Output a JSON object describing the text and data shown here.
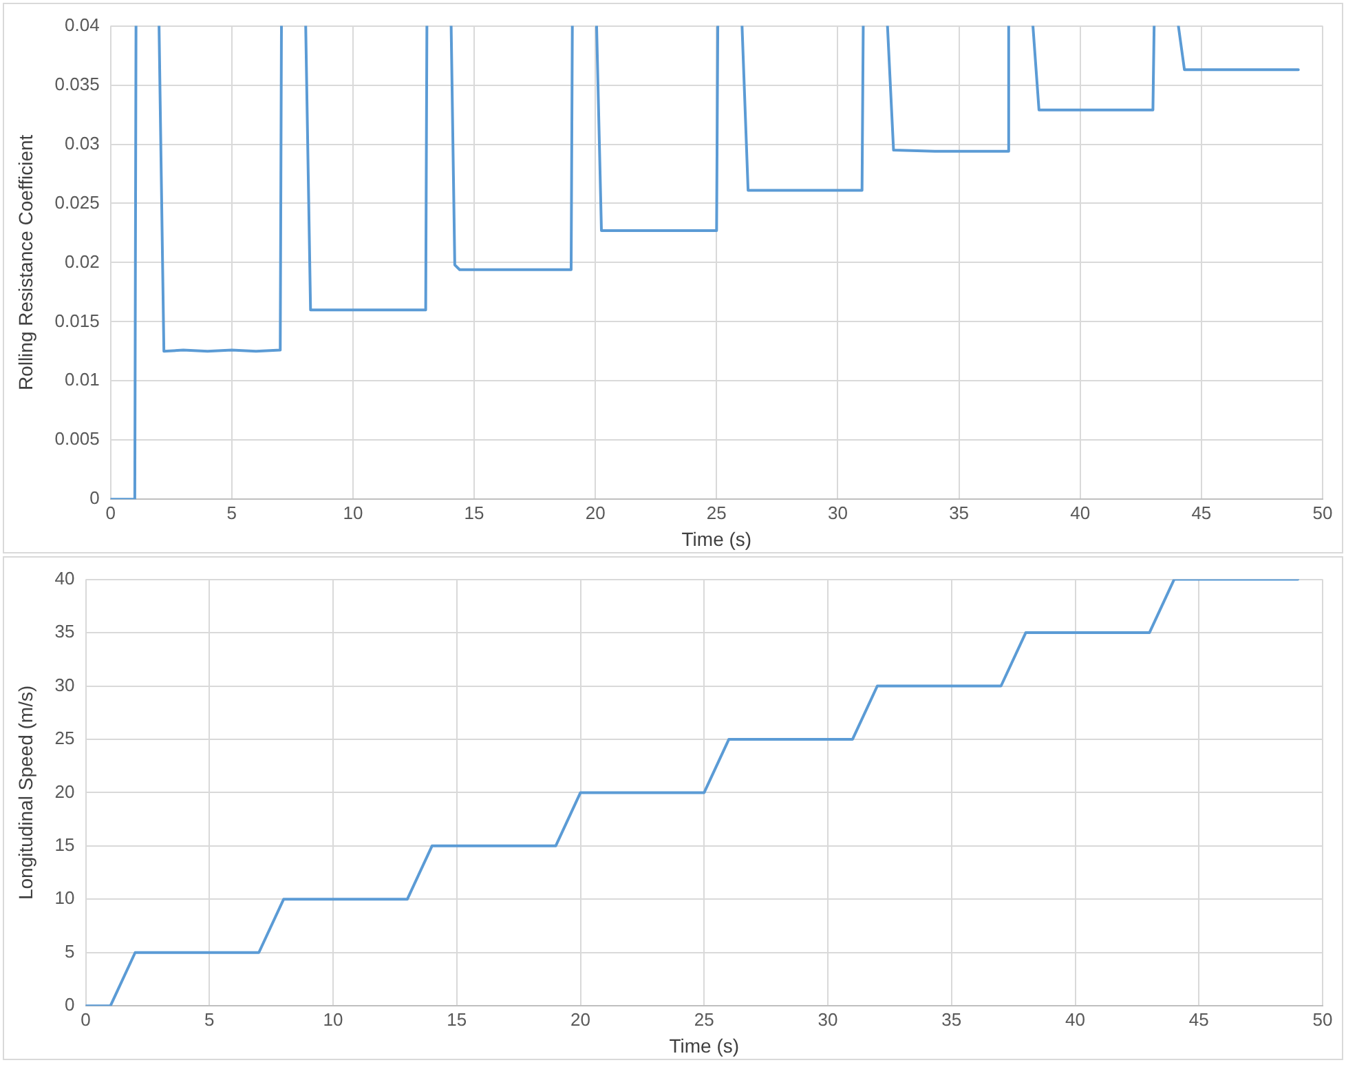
{
  "chart_data": [
    {
      "type": "line",
      "xlabel": "Time (s)",
      "ylabel": "Rolling Resistance Coefficient",
      "xlim": [
        0,
        50
      ],
      "xticks": [
        0,
        5,
        10,
        15,
        20,
        25,
        30,
        35,
        40,
        45,
        50
      ],
      "ylim": [
        0,
        0.04
      ],
      "yticks": [
        0,
        0.005,
        0.01,
        0.015,
        0.02,
        0.025,
        0.03,
        0.035,
        0.04
      ],
      "grid": true,
      "legend": false,
      "marker": "none",
      "line_style": "solid",
      "series": [
        {
          "color": "#5b9bd5",
          "x": [
            0,
            1,
            1.05,
            1.5,
            2.0,
            2.2,
            3,
            4,
            5,
            6,
            7,
            7.05,
            7.5,
            8.05,
            8.25,
            10,
            12,
            13,
            13.05,
            13.5,
            14.05,
            14.2,
            14.4,
            16,
            18,
            19,
            19.05,
            19.5,
            20.05,
            20.25,
            22,
            24,
            25,
            25.05,
            25.5,
            26.05,
            26.3,
            28,
            30,
            31,
            31.05,
            31.5,
            32.05,
            32.3,
            34,
            36,
            37,
            37.05,
            37.5,
            38.05,
            38.3,
            40,
            42,
            43,
            43.05,
            43.5,
            44.05,
            44.3,
            46,
            49
          ],
          "values": [
            0,
            0,
            0.04,
            null,
            0.04,
            0.0125,
            0.0126,
            0.0125,
            0.0126,
            0.0125,
            0.0126,
            0.04,
            null,
            0.04,
            0.016,
            0.016,
            0.016,
            0.016,
            0.04,
            null,
            0.04,
            0.0198,
            0.0194,
            0.0194,
            0.0194,
            0.0194,
            0.04,
            null,
            0.04,
            0.0227,
            0.0227,
            0.0227,
            0.0227,
            0.04,
            null,
            0.04,
            0.0261,
            0.0261,
            0.0261,
            0.0261,
            0.04,
            null,
            0.04,
            0.0295,
            0.0294,
            0.0294,
            0.0294,
            0.04,
            null,
            0.04,
            0.0329,
            0.0329,
            0.0329,
            0.0329,
            0.04,
            null,
            0.04,
            0.0363,
            0.0363,
            0.0363
          ]
        }
      ]
    },
    {
      "type": "line",
      "xlabel": "Time (s)",
      "ylabel": "Longitudinal Speed (m/s)",
      "xlim": [
        0,
        50
      ],
      "xticks": [
        0,
        5,
        10,
        15,
        20,
        25,
        30,
        35,
        40,
        45,
        50
      ],
      "ylim": [
        0,
        40
      ],
      "yticks": [
        0,
        5,
        10,
        15,
        20,
        25,
        30,
        35,
        40
      ],
      "grid": true,
      "legend": false,
      "marker": "none",
      "line_style": "solid",
      "series": [
        {
          "color": "#5b9bd5",
          "x": [
            0,
            1,
            2,
            7,
            8,
            13,
            14,
            19,
            20,
            25,
            26,
            31,
            32,
            37,
            38,
            43,
            44,
            49
          ],
          "values": [
            0,
            0,
            5,
            5,
            10,
            10,
            15,
            15,
            20,
            20,
            25,
            25,
            30,
            30,
            35,
            35,
            40,
            40
          ]
        }
      ]
    }
  ]
}
